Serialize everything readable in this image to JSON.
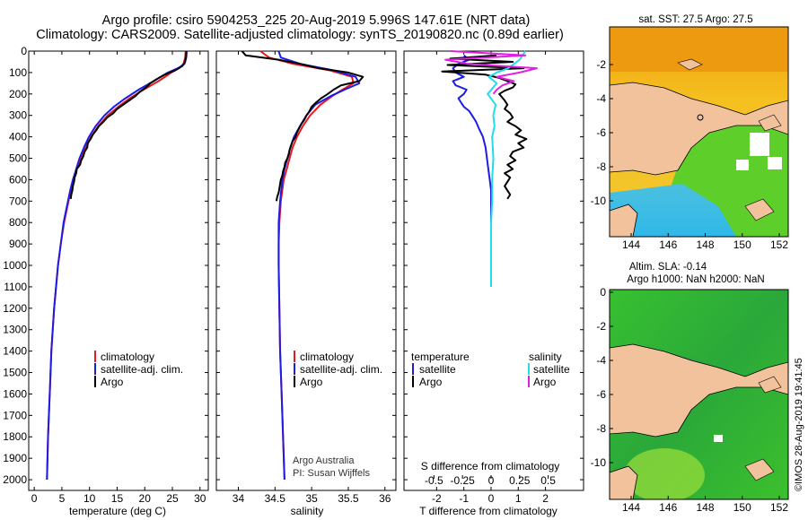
{
  "chart_data": {
    "type": "line",
    "title_line1": "Argo profile: csiro 5904253_225 20-Aug-2019 5.996S 147.61E (NRT data)",
    "title_line2": "Climatology: CARS2009. Satellite-adjusted climatology: synTS_20190820.nc (0.89d earlier)",
    "colors": {
      "argo": "#000000",
      "climatology": "#e8191e",
      "satellite": "#1c1ce8",
      "satellite_s": "#22dde8",
      "argo_s": "#e020e0"
    },
    "depth_axis": {
      "range": [
        0,
        2050
      ],
      "ticks": [
        "0",
        "100",
        "200",
        "300",
        "400",
        "500",
        "600",
        "700",
        "800",
        "900",
        "1000",
        "1100",
        "1200",
        "1300",
        "1400",
        "1500",
        "1600",
        "1700",
        "1800",
        "1900",
        "2000"
      ]
    },
    "panels": [
      {
        "id": "temperature",
        "xlabel": "temperature (deg C)",
        "xlim": [
          -1,
          31.5
        ],
        "xticks": [
          "0",
          "5",
          "10",
          "15",
          "20",
          "25",
          "30"
        ],
        "xtick_values": [
          0,
          5,
          10,
          15,
          20,
          25,
          30
        ],
        "legend": [
          "climatology",
          "satellite-adj. clim.",
          "Argo"
        ],
        "series": [
          {
            "name": "climatology",
            "color": "#e8191e",
            "depth": [
              0,
              30,
              60,
              80,
              100,
              140,
              180,
              220,
              260,
              300,
              350,
              400,
              450,
              500,
              550,
              600,
              650,
              700,
              800,
              900,
              1000,
              1200,
              1400,
              1600,
              1800,
              2000
            ],
            "values": [
              27.4,
              27.3,
              27.0,
              26.2,
              24.8,
              22.5,
              19.8,
              17.3,
              15.2,
              13.3,
              11.6,
              10.3,
              9.3,
              8.4,
              7.7,
              7.1,
              6.6,
              6.2,
              5.4,
              4.8,
              4.3,
              3.6,
              3.1,
              2.8,
              2.5,
              2.3
            ]
          },
          {
            "name": "satellite-adj. clim.",
            "color": "#1c1ce8",
            "depth": [
              0,
              30,
              60,
              80,
              100,
              140,
              180,
              220,
              260,
              300,
              350,
              400,
              450,
              500,
              550,
              600,
              650,
              700,
              800,
              900,
              1000,
              1200,
              1400,
              1600,
              1800,
              2000
            ],
            "values": [
              27.6,
              27.5,
              27.2,
              26.0,
              24.2,
              21.6,
              18.9,
              16.5,
              14.4,
              12.7,
              11.1,
              9.9,
              9.0,
              8.2,
              7.6,
              7.0,
              6.5,
              6.1,
              5.3,
              4.8,
              4.3,
              3.6,
              3.1,
              2.8,
              2.5,
              2.3
            ]
          },
          {
            "name": "Argo",
            "color": "#000000",
            "depth": [
              0,
              25,
              50,
              70,
              90,
              110,
              130,
              150,
              170,
              190,
              210,
              230,
              250,
              270,
              290,
              310,
              330,
              350,
              370,
              390,
              410,
              430,
              450,
              470,
              490,
              510,
              530,
              550,
              570,
              590,
              610,
              630,
              650,
              670,
              690
            ],
            "values": [
              27.5,
              27.5,
              27.3,
              26.8,
              25.5,
              23.6,
              22.2,
              21.0,
              20.2,
              19.1,
              18.3,
              17.2,
              16.1,
              15.0,
              14.3,
              13.2,
              12.5,
              11.7,
              11.2,
              10.6,
              10.2,
              9.7,
              9.6,
              9.1,
              8.9,
              8.5,
              8.3,
              7.7,
              7.6,
              7.3,
              7.2,
              7.0,
              6.9,
              6.7,
              6.6
            ]
          }
        ]
      },
      {
        "id": "salinity",
        "xlabel": "salinity",
        "xlim": [
          33.7,
          36.15
        ],
        "xticks": [
          "34",
          "34.5",
          "35",
          "35.5",
          "36"
        ],
        "xtick_values": [
          34,
          34.5,
          35,
          35.5,
          36
        ],
        "legend": [
          "climatology",
          "satellite-adj. clim.",
          "Argo"
        ],
        "credit_line1": "Argo Australia",
        "credit_line2": "PI: Susan Wijffels",
        "series": [
          {
            "name": "climatology",
            "color": "#e8191e",
            "depth": [
              0,
              30,
              60,
              90,
              120,
              150,
              180,
              210,
              250,
              300,
              350,
              400,
              450,
              500,
              550,
              600,
              700,
              800,
              900,
              1000,
              1200,
              1400,
              1600,
              1800,
              2000
            ],
            "values": [
              34.3,
              34.42,
              34.75,
              35.25,
              35.55,
              35.57,
              35.42,
              35.28,
              35.12,
              34.98,
              34.88,
              34.8,
              34.74,
              34.7,
              34.66,
              34.62,
              34.58,
              34.56,
              34.55,
              34.55,
              34.56,
              34.57,
              34.59,
              34.61,
              34.63
            ]
          },
          {
            "name": "satellite-adj. clim.",
            "color": "#1c1ce8",
            "depth": [
              0,
              30,
              60,
              90,
              120,
              150,
              180,
              210,
              250,
              300,
              350,
              400,
              450,
              500,
              550,
              600,
              700,
              800,
              900,
              1000,
              1200,
              1400,
              1600,
              1800,
              2000
            ],
            "values": [
              34.55,
              34.58,
              34.85,
              35.3,
              35.6,
              35.65,
              35.45,
              35.26,
              35.05,
              34.93,
              34.84,
              34.76,
              34.71,
              34.67,
              34.63,
              34.6,
              34.57,
              34.55,
              34.55,
              34.55,
              34.56,
              34.57,
              34.59,
              34.61,
              34.63
            ]
          },
          {
            "name": "Argo",
            "color": "#000000",
            "depth": [
              0,
              20,
              40,
              60,
              80,
              100,
              120,
              140,
              160,
              180,
              200,
              220,
              240,
              260,
              280,
              300,
              320,
              340,
              360,
              380,
              400,
              420,
              440,
              460,
              480,
              500,
              520,
              540,
              560,
              580,
              600,
              620,
              640,
              660,
              680,
              700
            ],
            "values": [
              34.05,
              34.1,
              34.55,
              34.85,
              35.1,
              35.5,
              35.7,
              35.65,
              35.4,
              35.3,
              35.22,
              35.13,
              35.06,
              35.0,
              34.97,
              34.93,
              34.9,
              34.86,
              34.83,
              34.8,
              34.78,
              34.74,
              34.72,
              34.7,
              34.69,
              34.67,
              34.64,
              34.63,
              34.61,
              34.6,
              34.58,
              34.57,
              34.56,
              34.55,
              34.53,
              34.52
            ]
          }
        ]
      },
      {
        "id": "difference",
        "xlabel": "T difference from climatology",
        "xlim": [
          -3.2,
          3.4
        ],
        "xticks": [
          "-2",
          "-1",
          "0",
          "1",
          "2"
        ],
        "xtick_values": [
          -2,
          -1,
          0,
          1,
          2
        ],
        "s_label": "S difference from climatology",
        "s_ticks": [
          "-0.5",
          "-0.25",
          "0",
          "0.25",
          "0.5"
        ],
        "s_tick_values": [
          -0.5,
          -0.25,
          0,
          0.25,
          0.5
        ],
        "legend_left_title": "temperature",
        "legend_left": [
          "satellite",
          "Argo"
        ],
        "legend_right_title": "salinity",
        "legend_right": [
          "satellite",
          "Argo"
        ],
        "series": [
          {
            "name": "T satellite",
            "color": "#1c1ce8",
            "depth": [
              20,
              40,
              60,
              80,
              100,
              120,
              140,
              160,
              180,
              200,
              220,
              240,
              260,
              280,
              300,
              330,
              360,
              400,
              450,
              500,
              550,
              600,
              650,
              700,
              760
            ],
            "values": [
              -1.0,
              -0.8,
              -1.2,
              -1.4,
              -1.3,
              -1.0,
              -1.4,
              -1.3,
              -0.9,
              -1.0,
              -1.2,
              -1.1,
              -1.0,
              -0.8,
              -0.7,
              -0.55,
              -0.45,
              -0.3,
              -0.2,
              -0.15,
              -0.1,
              -0.05,
              0,
              0,
              0
            ]
          },
          {
            "name": "T Argo",
            "color": "#000000",
            "depth": [
              20,
              35,
              50,
              65,
              80,
              95,
              110,
              125,
              140,
              155,
              170,
              185,
              200,
              215,
              230,
              250,
              270,
              290,
              310,
              330,
              350,
              370,
              390,
              410,
              430,
              450,
              470,
              490,
              510,
              530,
              550,
              570,
              590,
              610,
              630,
              650,
              670,
              690
            ],
            "values": [
              0.2,
              -1.5,
              0.8,
              -1.6,
              1.2,
              -1.8,
              -0.2,
              0.3,
              0.6,
              0.9,
              0.8,
              0.5,
              0.3,
              0.4,
              0.5,
              0.6,
              0.5,
              0.7,
              0.8,
              0.6,
              0.9,
              1.1,
              0.9,
              1.3,
              1.0,
              1.2,
              0.8,
              0.7,
              0.9,
              0.6,
              0.8,
              0.5,
              0.7,
              0.6,
              0.5,
              0.6,
              0.7,
              0.6
            ]
          },
          {
            "name": "S satellite",
            "color": "#22dde8",
            "depth": [
              0,
              40,
              80,
              100,
              120,
              150,
              200,
              250,
              300,
              350,
              400,
              500,
              600,
              700,
              800,
              900,
              1000,
              1100
            ],
            "values": [
              0.3,
              0.25,
              0.15,
              0.05,
              -0.02,
              0.05,
              -0.03,
              0.04,
              0.02,
              0.03,
              0.01,
              0.02,
              0.01,
              0.01,
              0,
              0,
              0,
              0
            ]
          },
          {
            "name": "S Argo",
            "color": "#e020e0",
            "depth": [
              0,
              20,
              40,
              60,
              80,
              100,
              120,
              140,
              160,
              180,
              200
            ],
            "values": [
              -0.35,
              0.3,
              -0.4,
              -0.2,
              0.4,
              0.25,
              0.05,
              0.2,
              0.1,
              0.05,
              0.02
            ]
          }
        ]
      }
    ],
    "maps": [
      {
        "id": "sst-map",
        "title": "sat. SST: 27.5 Argo: 27.5",
        "xticks": [
          "144",
          "146",
          "148",
          "150",
          "152"
        ],
        "yticks": [
          "-2",
          "-4",
          "-6",
          "-8",
          "-10"
        ]
      },
      {
        "id": "sla-map",
        "title_line1": "Altim. SLA: -0.14",
        "title_line2": "Argo h1000: NaN h2000: NaN",
        "xticks": [
          "144",
          "146",
          "148",
          "150",
          "152"
        ],
        "yticks": [
          "0",
          "-2",
          "-4",
          "-6",
          "-8",
          "-10"
        ]
      }
    ],
    "stamp": "©IMOS 28-Aug-2019 19:41:45"
  }
}
